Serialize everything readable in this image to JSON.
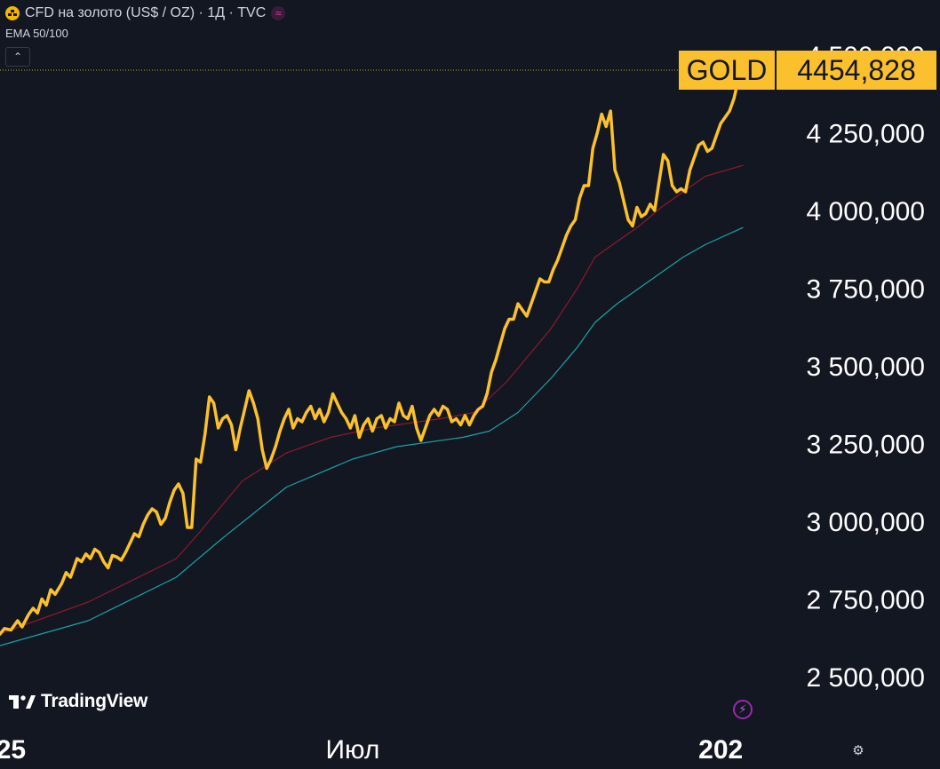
{
  "header": {
    "title": "CFD на золото (US$ / OZ) · 1Д · TVC",
    "badge_glyph": "≈",
    "indicator": "EMA 50/100",
    "collapse_glyph": "⌃"
  },
  "price_tag": {
    "symbol": "GOLD",
    "value": "4454,828"
  },
  "branding": {
    "name": "TradingView"
  },
  "colors": {
    "background": "#131722",
    "price_line": "#fbc02d",
    "ema50": "#8b1a2b",
    "ema100": "#1aa3a8",
    "tag_bg": "#fbc02d",
    "axis_text": "#ffffff"
  },
  "icons": {
    "flash": "lightning-icon",
    "settings": "settings-icon"
  },
  "chart_data": {
    "type": "line",
    "ylim": [
      2450,
      4550
    ],
    "y_ticks": [
      2500,
      2750,
      3000,
      3250,
      3500,
      3750,
      4000,
      4250,
      4500
    ],
    "y_tick_labels": [
      "2 500,000",
      "2 750,000",
      "3 000,000",
      "3 250,000",
      "3 500,000",
      "3 750,000",
      "4 000,000",
      "4 250,000",
      "4 500,000"
    ],
    "x_labels": [
      {
        "label": "25",
        "x": 5
      },
      {
        "label": "Июл",
        "x": 160
      },
      {
        "label": "202",
        "x": 327
      }
    ],
    "xlim": [
      0,
      355
    ],
    "series": [
      {
        "key": "price",
        "values": [
          [
            0,
            2637
          ],
          [
            2,
            2655
          ],
          [
            5,
            2650
          ],
          [
            8,
            2680
          ],
          [
            10,
            2660
          ],
          [
            13,
            2700
          ],
          [
            15,
            2720
          ],
          [
            17,
            2705
          ],
          [
            19,
            2750
          ],
          [
            21,
            2730
          ],
          [
            23,
            2780
          ],
          [
            25,
            2765
          ],
          [
            28,
            2800
          ],
          [
            30,
            2835
          ],
          [
            32,
            2820
          ],
          [
            35,
            2880
          ],
          [
            37,
            2870
          ],
          [
            39,
            2895
          ],
          [
            41,
            2880
          ],
          [
            43,
            2910
          ],
          [
            45,
            2900
          ],
          [
            47,
            2870
          ],
          [
            49,
            2850
          ],
          [
            51,
            2890
          ],
          [
            53,
            2885
          ],
          [
            55,
            2875
          ],
          [
            57,
            2900
          ],
          [
            59,
            2930
          ],
          [
            61,
            2960
          ],
          [
            63,
            2950
          ],
          [
            65,
            2990
          ],
          [
            67,
            3020
          ],
          [
            69,
            3040
          ],
          [
            71,
            3030
          ],
          [
            73,
            2990
          ],
          [
            75,
            3010
          ],
          [
            77,
            3060
          ],
          [
            79,
            3100
          ],
          [
            81,
            3120
          ],
          [
            83,
            3090
          ],
          [
            85,
            2980
          ],
          [
            87,
            2980
          ],
          [
            89,
            3200
          ],
          [
            91,
            3190
          ],
          [
            93,
            3280
          ],
          [
            95,
            3400
          ],
          [
            97,
            3380
          ],
          [
            99,
            3300
          ],
          [
            101,
            3330
          ],
          [
            103,
            3340
          ],
          [
            105,
            3310
          ],
          [
            107,
            3230
          ],
          [
            109,
            3300
          ],
          [
            111,
            3360
          ],
          [
            113,
            3420
          ],
          [
            115,
            3380
          ],
          [
            117,
            3330
          ],
          [
            119,
            3230
          ],
          [
            121,
            3170
          ],
          [
            123,
            3200
          ],
          [
            125,
            3240
          ],
          [
            127,
            3290
          ],
          [
            129,
            3330
          ],
          [
            131,
            3360
          ],
          [
            133,
            3300
          ],
          [
            135,
            3330
          ],
          [
            137,
            3320
          ],
          [
            139,
            3350
          ],
          [
            141,
            3370
          ],
          [
            143,
            3330
          ],
          [
            145,
            3360
          ],
          [
            147,
            3320
          ],
          [
            149,
            3350
          ],
          [
            151,
            3410
          ],
          [
            153,
            3380
          ],
          [
            155,
            3350
          ],
          [
            157,
            3330
          ],
          [
            159,
            3300
          ],
          [
            161,
            3340
          ],
          [
            163,
            3270
          ],
          [
            165,
            3310
          ],
          [
            167,
            3330
          ],
          [
            169,
            3290
          ],
          [
            171,
            3330
          ],
          [
            173,
            3340
          ],
          [
            175,
            3300
          ],
          [
            177,
            3330
          ],
          [
            179,
            3320
          ],
          [
            181,
            3380
          ],
          [
            183,
            3340
          ],
          [
            185,
            3330
          ],
          [
            187,
            3370
          ],
          [
            189,
            3300
          ],
          [
            191,
            3260
          ],
          [
            193,
            3300
          ],
          [
            195,
            3340
          ],
          [
            197,
            3360
          ],
          [
            199,
            3340
          ],
          [
            201,
            3370
          ],
          [
            203,
            3360
          ],
          [
            205,
            3320
          ],
          [
            207,
            3330
          ],
          [
            209,
            3310
          ],
          [
            211,
            3340
          ],
          [
            213,
            3310
          ],
          [
            215,
            3340
          ],
          [
            217,
            3360
          ],
          [
            219,
            3370
          ],
          [
            221,
            3410
          ],
          [
            223,
            3480
          ],
          [
            225,
            3520
          ],
          [
            227,
            3570
          ],
          [
            229,
            3620
          ],
          [
            231,
            3650
          ],
          [
            233,
            3650
          ],
          [
            235,
            3700
          ],
          [
            237,
            3680
          ],
          [
            239,
            3660
          ],
          [
            241,
            3700
          ],
          [
            243,
            3740
          ],
          [
            245,
            3780
          ],
          [
            247,
            3770
          ],
          [
            249,
            3770
          ],
          [
            251,
            3810
          ],
          [
            253,
            3840
          ],
          [
            255,
            3880
          ],
          [
            257,
            3920
          ],
          [
            259,
            3950
          ],
          [
            261,
            3970
          ],
          [
            263,
            4040
          ],
          [
            265,
            4080
          ],
          [
            267,
            4080
          ],
          [
            269,
            4200
          ],
          [
            271,
            4250
          ],
          [
            273,
            4310
          ],
          [
            275,
            4270
          ],
          [
            277,
            4320
          ],
          [
            279,
            4130
          ],
          [
            281,
            4090
          ],
          [
            283,
            4030
          ],
          [
            285,
            3970
          ],
          [
            287,
            3950
          ],
          [
            289,
            4010
          ],
          [
            291,
            3980
          ],
          [
            293,
            3990
          ],
          [
            295,
            4020
          ],
          [
            297,
            4000
          ],
          [
            299,
            4090
          ],
          [
            301,
            4180
          ],
          [
            303,
            4160
          ],
          [
            305,
            4080
          ],
          [
            307,
            4060
          ],
          [
            309,
            4070
          ],
          [
            311,
            4060
          ],
          [
            313,
            4130
          ],
          [
            315,
            4170
          ],
          [
            317,
            4210
          ],
          [
            319,
            4220
          ],
          [
            321,
            4190
          ],
          [
            323,
            4200
          ],
          [
            325,
            4240
          ],
          [
            327,
            4280
          ],
          [
            329,
            4300
          ],
          [
            331,
            4320
          ],
          [
            333,
            4360
          ],
          [
            335,
            4420
          ],
          [
            337,
            4455
          ]
        ]
      },
      {
        "key": "ema50",
        "values": [
          [
            0,
            2638
          ],
          [
            40,
            2740
          ],
          [
            80,
            2880
          ],
          [
            90,
            2960
          ],
          [
            110,
            3130
          ],
          [
            130,
            3220
          ],
          [
            150,
            3270
          ],
          [
            170,
            3300
          ],
          [
            200,
            3330
          ],
          [
            215,
            3350
          ],
          [
            230,
            3450
          ],
          [
            250,
            3620
          ],
          [
            262,
            3750
          ],
          [
            270,
            3850
          ],
          [
            280,
            3900
          ],
          [
            290,
            3950
          ],
          [
            300,
            4010
          ],
          [
            310,
            4060
          ],
          [
            320,
            4110
          ],
          [
            337,
            4145
          ]
        ]
      },
      {
        "key": "ema100",
        "values": [
          [
            0,
            2600
          ],
          [
            40,
            2680
          ],
          [
            80,
            2820
          ],
          [
            100,
            2940
          ],
          [
            130,
            3110
          ],
          [
            160,
            3200
          ],
          [
            180,
            3240
          ],
          [
            210,
            3270
          ],
          [
            222,
            3290
          ],
          [
            235,
            3350
          ],
          [
            250,
            3460
          ],
          [
            262,
            3560
          ],
          [
            270,
            3640
          ],
          [
            280,
            3700
          ],
          [
            290,
            3750
          ],
          [
            300,
            3800
          ],
          [
            310,
            3850
          ],
          [
            320,
            3890
          ],
          [
            337,
            3945
          ]
        ]
      }
    ]
  }
}
